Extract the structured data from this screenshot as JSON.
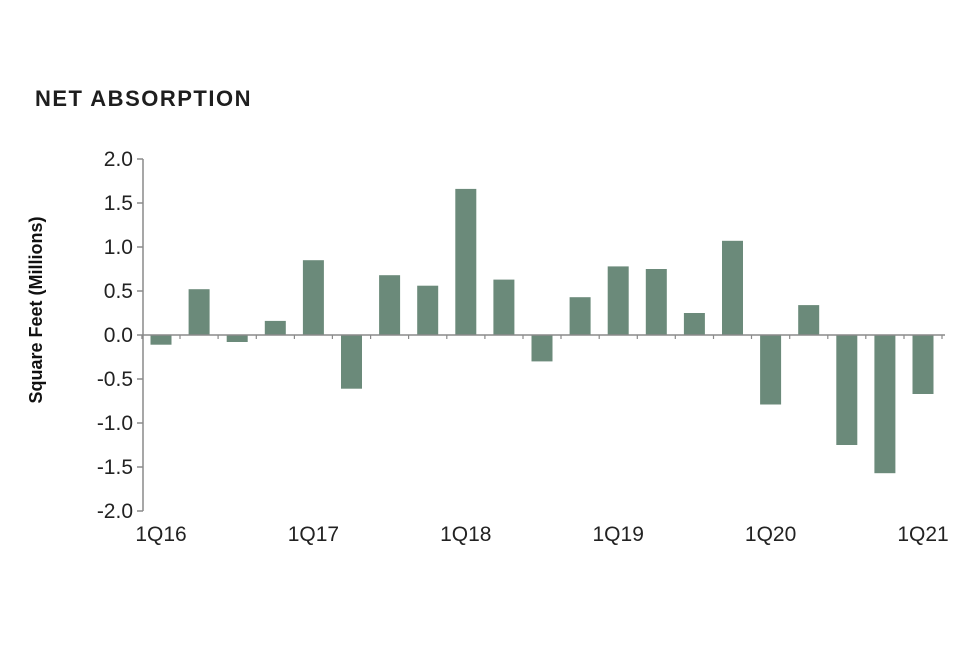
{
  "chart_data": {
    "type": "bar",
    "title": "NET ABSORPTION",
    "xlabel": "",
    "ylabel": "Square Feet (Millions)",
    "ylim": [
      -2.0,
      2.0
    ],
    "yticks": [
      "2.0",
      "1.5",
      "1.0",
      "0.5",
      "0.0",
      "-0.5",
      "-1.0",
      "-1.5",
      "-2.0"
    ],
    "categories": [
      "1Q16",
      "2Q16",
      "3Q16",
      "4Q16",
      "1Q17",
      "2Q17",
      "3Q17",
      "4Q17",
      "1Q18",
      "2Q18",
      "3Q18",
      "4Q18",
      "1Q19",
      "2Q19",
      "3Q19",
      "4Q19",
      "1Q20",
      "2Q20",
      "3Q20",
      "4Q20",
      "1Q21"
    ],
    "x_tick_labels": [
      "1Q16",
      "1Q17",
      "1Q18",
      "1Q19",
      "1Q20",
      "1Q21"
    ],
    "values": [
      -0.11,
      0.52,
      -0.08,
      0.16,
      0.85,
      -0.61,
      0.68,
      0.56,
      1.66,
      0.63,
      -0.3,
      0.43,
      0.78,
      0.75,
      0.25,
      1.07,
      -0.79,
      0.34,
      -1.25,
      -1.57,
      -0.67
    ],
    "bar_color": "#6b8a7a",
    "axis_color": "#8a8a8a",
    "grid": false
  }
}
